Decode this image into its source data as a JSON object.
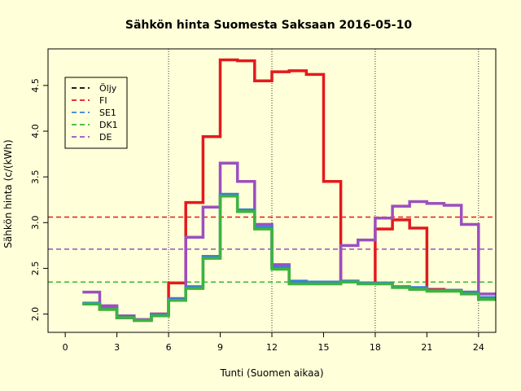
{
  "chart_data": {
    "type": "line",
    "title": "Sähkön hinta Suomesta Saksaan 2016-05-10",
    "xlabel": "Tunti (Suomen aikaa)",
    "ylabel": "Sähkön hinta (c/(kWh)",
    "xlim": [
      -1,
      25
    ],
    "ylim": [
      1.8,
      4.9
    ],
    "x_ticks": [
      0,
      3,
      6,
      9,
      12,
      15,
      18,
      21,
      24
    ],
    "y_ticks": [
      2.0,
      2.5,
      3.0,
      3.5,
      4.0,
      4.5
    ],
    "vertical_gridlines": [
      6,
      12,
      18,
      24
    ],
    "legend_position": "top-left",
    "legend": [
      {
        "label": "Öljy",
        "color": "#000000"
      },
      {
        "label": "FI",
        "color": "#e31a1c"
      },
      {
        "label": "SE1",
        "color": "#3a7fd8"
      },
      {
        "label": "DK1",
        "color": "#3cb43c"
      },
      {
        "label": "DE",
        "color": "#9b4fc0"
      }
    ],
    "hours": [
      1,
      2,
      3,
      4,
      5,
      6,
      7,
      8,
      9,
      10,
      11,
      12,
      13,
      14,
      15,
      16,
      17,
      18,
      19,
      20,
      21,
      22,
      23,
      24,
      25
    ],
    "series": [
      {
        "name": "FI",
        "color": "#e31a1c",
        "average": 3.06,
        "values": [
          2.11,
          2.05,
          1.96,
          1.93,
          2.0,
          2.34,
          3.22,
          3.94,
          4.78,
          4.77,
          4.55,
          4.65,
          4.66,
          4.62,
          3.45,
          2.36,
          2.34,
          2.93,
          3.03,
          2.94,
          2.27,
          2.26,
          2.24,
          2.17,
          2.17
        ]
      },
      {
        "name": "DE",
        "color": "#9b4fc0",
        "average": 2.71,
        "values": [
          2.24,
          2.09,
          1.98,
          1.94,
          2.0,
          2.17,
          2.84,
          3.17,
          3.65,
          3.45,
          2.98,
          2.54,
          2.34,
          2.34,
          2.34,
          2.75,
          2.81,
          3.05,
          3.18,
          3.23,
          3.21,
          3.19,
          2.98,
          2.22,
          2.22
        ]
      },
      {
        "name": "SE1",
        "color": "#3a7fd8",
        "average": 2.35,
        "values": [
          2.12,
          2.06,
          1.96,
          1.93,
          1.99,
          2.16,
          2.3,
          2.63,
          3.31,
          3.14,
          2.95,
          2.51,
          2.36,
          2.35,
          2.35,
          2.36,
          2.34,
          2.34,
          2.3,
          2.29,
          2.26,
          2.26,
          2.24,
          2.18,
          2.18
        ]
      },
      {
        "name": "DK1",
        "color": "#3cb43c",
        "average": 2.35,
        "values": [
          2.11,
          2.05,
          1.96,
          1.93,
          1.98,
          2.15,
          2.28,
          2.61,
          3.29,
          3.12,
          2.93,
          2.49,
          2.33,
          2.33,
          2.33,
          2.35,
          2.33,
          2.33,
          2.29,
          2.27,
          2.25,
          2.25,
          2.22,
          2.16,
          2.16
        ]
      }
    ]
  }
}
